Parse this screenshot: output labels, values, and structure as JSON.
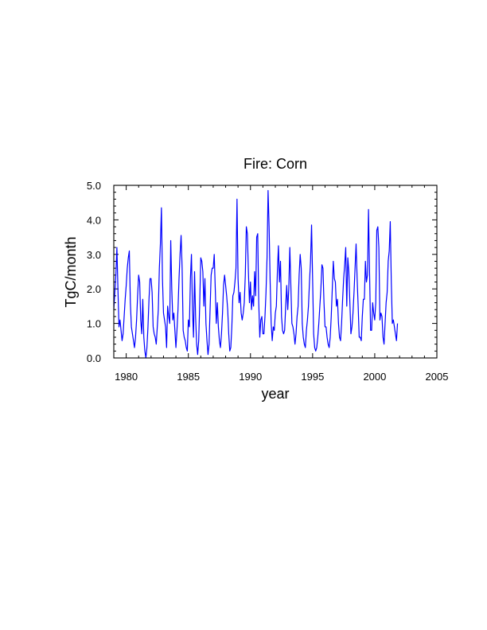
{
  "colors": {
    "series": "#0000ff",
    "axes": "#000000",
    "background": "#ffffff"
  },
  "chart_data": {
    "type": "line",
    "title": "Fire: Corn",
    "xlabel": "year",
    "ylabel": "TgC/month",
    "xlim": [
      1979,
      2005
    ],
    "ylim": [
      0.0,
      5.0
    ],
    "grid": false,
    "legend": "none",
    "xticks": [
      1980,
      1985,
      1990,
      1995,
      2000,
      2005
    ],
    "xtick_labels": [
      "1980",
      "1985",
      "1990",
      "1995",
      "2000",
      "2005"
    ],
    "yticks": [
      0.0,
      1.0,
      2.0,
      3.0,
      4.0,
      5.0
    ],
    "ytick_labels": [
      "0.0",
      "1.0",
      "2.0",
      "3.0",
      "4.0",
      "5.0"
    ],
    "x_minor_step": 1,
    "y_minor_step": 0.2,
    "series": [
      {
        "color": "#0000ff",
        "x_start": 1979.0,
        "x_step": 0.08333,
        "values": [
          1.4,
          1.9,
          2.4,
          3.2,
          2.0,
          0.9,
          1.1,
          0.8,
          0.5,
          0.7,
          1.2,
          1.7,
          2.1,
          2.6,
          2.9,
          3.1,
          1.6,
          0.9,
          0.7,
          0.5,
          0.3,
          0.6,
          1.1,
          1.8,
          2.4,
          2.2,
          1.1,
          0.7,
          1.7,
          0.6,
          0.2,
          0.0,
          0.3,
          0.9,
          1.7,
          2.3,
          2.3,
          1.9,
          0.9,
          0.7,
          0.6,
          0.4,
          0.9,
          1.4,
          2.6,
          3.3,
          4.35,
          2.3,
          1.3,
          1.1,
          0.9,
          0.3,
          1.5,
          1.2,
          1.0,
          3.4,
          2.0,
          1.1,
          1.3,
          0.8,
          0.3,
          0.8,
          1.4,
          2.3,
          3.0,
          3.55,
          2.6,
          0.8,
          0.6,
          0.5,
          0.3,
          0.2,
          1.1,
          0.9,
          2.3,
          3.0,
          1.4,
          0.6,
          2.5,
          1.2,
          0.4,
          0.1,
          0.5,
          1.6,
          2.9,
          2.8,
          2.5,
          1.5,
          2.3,
          1.0,
          0.5,
          0.1,
          0.4,
          1.4,
          2.4,
          2.6,
          2.6,
          3.0,
          2.0,
          1.0,
          1.6,
          0.9,
          0.5,
          0.3,
          0.7,
          1.3,
          2.1,
          2.4,
          2.1,
          1.8,
          1.4,
          0.7,
          0.2,
          0.3,
          0.9,
          1.8,
          1.9,
          2.2,
          2.6,
          4.6,
          2.3,
          1.6,
          1.9,
          1.3,
          1.1,
          1.3,
          1.6,
          2.4,
          3.8,
          3.6,
          2.5,
          1.6,
          2.2,
          1.4,
          1.8,
          1.5,
          2.5,
          1.8,
          3.5,
          3.6,
          1.6,
          0.6,
          1.1,
          1.2,
          0.7,
          0.7,
          1.2,
          1.9,
          2.9,
          4.85,
          3.8,
          2.2,
          1.0,
          0.5,
          0.9,
          0.8,
          1.3,
          1.5,
          2.5,
          3.25,
          2.2,
          2.8,
          1.2,
          0.8,
          0.7,
          0.8,
          1.5,
          2.1,
          1.4,
          2.0,
          3.2,
          2.1,
          1.0,
          0.9,
          0.7,
          0.4,
          0.7,
          1.2,
          1.5,
          2.4,
          3.0,
          2.6,
          1.0,
          0.6,
          0.4,
          0.3,
          0.8,
          1.1,
          1.5,
          2.2,
          2.8,
          3.85,
          2.3,
          0.7,
          0.3,
          0.2,
          0.3,
          0.6,
          1.0,
          1.5,
          2.0,
          2.7,
          2.6,
          1.6,
          0.9,
          0.9,
          0.6,
          0.4,
          0.3,
          0.6,
          1.2,
          2.0,
          2.8,
          2.3,
          2.2,
          1.5,
          1.7,
          1.0,
          0.6,
          0.5,
          1.0,
          1.7,
          2.3,
          2.7,
          3.2,
          1.5,
          2.9,
          2.5,
          1.6,
          0.7,
          0.9,
          1.3,
          1.9,
          2.6,
          3.3,
          2.3,
          1.5,
          0.6,
          0.6,
          0.5,
          1.2,
          1.7,
          1.7,
          2.8,
          2.2,
          2.4,
          4.3,
          2.5,
          0.8,
          0.8,
          1.6,
          1.3,
          1.1,
          1.6,
          3.7,
          3.8,
          3.2,
          1.1,
          1.3,
          1.2,
          0.6,
          0.4,
          1.0,
          1.6,
          1.9,
          2.8,
          3.1,
          3.95,
          2.2,
          1.0,
          1.1,
          0.9,
          0.7,
          0.5,
          1.0
        ]
      }
    ]
  }
}
